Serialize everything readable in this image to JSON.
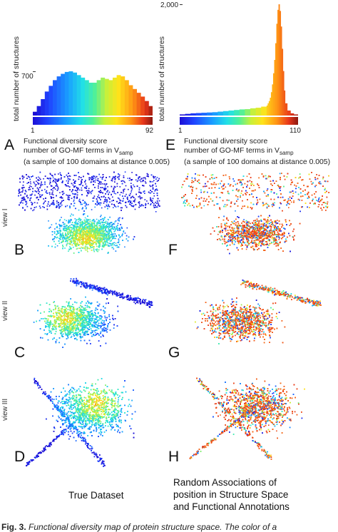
{
  "chart_data": [
    {
      "type": "bar",
      "panel": "A",
      "ylabel": "total number of structures",
      "ytick": "700",
      "colorbar_min": "1",
      "colorbar_max": "92",
      "x": [
        1,
        4,
        7,
        10,
        13,
        16,
        19,
        22,
        25,
        28,
        31,
        34,
        37,
        40,
        43,
        46,
        49,
        52,
        55,
        58,
        61,
        64,
        67,
        70,
        73,
        76,
        79,
        82,
        85,
        88,
        91
      ],
      "values": [
        60,
        150,
        260,
        380,
        470,
        560,
        620,
        660,
        690,
        700,
        680,
        640,
        600,
        560,
        520,
        520,
        560,
        600,
        580,
        560,
        600,
        640,
        620,
        560,
        480,
        420,
        360,
        300,
        230,
        150,
        70
      ],
      "ylim": [
        0,
        700
      ]
    },
    {
      "type": "bar",
      "panel": "E",
      "ylabel": "total number of structures",
      "ytick": "2,000",
      "colorbar_min": "1",
      "colorbar_max": "110",
      "x": [
        1,
        6,
        11,
        16,
        21,
        26,
        31,
        36,
        41,
        46,
        51,
        56,
        61,
        66,
        71,
        76,
        81,
        82,
        83,
        84,
        85,
        86,
        87,
        88,
        89,
        90,
        91,
        92,
        93,
        94,
        95,
        96,
        97,
        98,
        100,
        103,
        106,
        110
      ],
      "values": [
        20,
        30,
        40,
        45,
        50,
        55,
        60,
        70,
        80,
        90,
        100,
        110,
        115,
        130,
        140,
        160,
        180,
        220,
        260,
        320,
        420,
        560,
        760,
        1000,
        1300,
        1650,
        1900,
        2000,
        1880,
        1600,
        1200,
        800,
        450,
        220,
        90,
        40,
        20,
        10
      ],
      "ylim": [
        0,
        2000
      ]
    }
  ],
  "panels": {
    "A": {
      "letter": "A",
      "caption1": "Functional diversity score",
      "caption2": "number of GO-MF terms in V",
      "caption2_sub": "samp",
      "caption3": "(a sample of 100 domains at distance 0.005)"
    },
    "E": {
      "letter": "E",
      "caption1": "Functional diversity score",
      "caption2": "number of GO-MF terms in V",
      "caption2_sub": "samp",
      "caption3": "(a sample of 100 domains at distance 0.005)"
    },
    "B": {
      "letter": "B"
    },
    "C": {
      "letter": "C"
    },
    "D": {
      "letter": "D"
    },
    "F": {
      "letter": "F"
    },
    "G": {
      "letter": "G"
    },
    "H": {
      "letter": "H"
    }
  },
  "views": {
    "view1": "view I",
    "view2": "view II",
    "view3": "view III"
  },
  "columns": {
    "left_title": "True Dataset",
    "right_title_l1": "Random Associations of",
    "right_title_l2": "position in Structure Space",
    "right_title_l3": "and Functional Annotations"
  },
  "caption_line": {
    "prefix": "Fig. 3.",
    "text": "Functional diversity map of protein structure space. The color of a"
  },
  "colors": {
    "low": "#1c0fd6",
    "mid": "#4ff09a",
    "high": "#ffe21a",
    "top": "#8b1810",
    "random_fill": "#ff5a1f"
  }
}
